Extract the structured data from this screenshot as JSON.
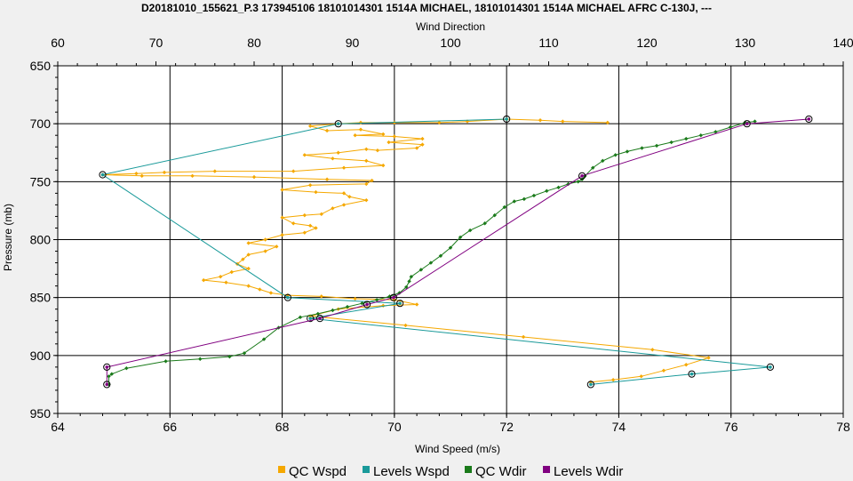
{
  "chart_data": {
    "type": "line",
    "title": "D20181010_155621_P.3 173945106 18101014301 1514A MICHAEL, 18101014301 1514A MICHAEL AFRC C-130J, ---",
    "xlabel_bottom": "Wind Speed (m/s)",
    "xlabel_top": "Wind Direction",
    "ylabel": "Pressure (mb)",
    "x_bottom_range": [
      64,
      78
    ],
    "x_top_range": [
      60,
      140
    ],
    "y_range": [
      650,
      950
    ],
    "y_inverted": true,
    "grid": true,
    "legend_position": "bottom",
    "x_bottom_ticks": [
      "64",
      "66",
      "68",
      "70",
      "72",
      "74",
      "76",
      "78"
    ],
    "x_top_ticks": [
      "60",
      "70",
      "80",
      "90",
      "100",
      "110",
      "120",
      "130",
      "140"
    ],
    "y_ticks": [
      "650",
      "700",
      "750",
      "800",
      "850",
      "900",
      "950"
    ],
    "series": [
      {
        "name": "QC Wspd",
        "axis": "bottom",
        "color": "#f5a800",
        "marker": "diamond",
        "points": [
          [
            73.8,
            699
          ],
          [
            73.0,
            698
          ],
          [
            72.6,
            697
          ],
          [
            72.0,
            696
          ],
          [
            71.3,
            698
          ],
          [
            70.8,
            699
          ],
          [
            70.0,
            699
          ],
          [
            69.4,
            699
          ],
          [
            69.0,
            700
          ],
          [
            68.5,
            702
          ],
          [
            68.8,
            706
          ],
          [
            69.4,
            705
          ],
          [
            69.8,
            709
          ],
          [
            69.3,
            710
          ],
          [
            70.0,
            711
          ],
          [
            70.5,
            713
          ],
          [
            69.9,
            716
          ],
          [
            70.5,
            718
          ],
          [
            70.4,
            721
          ],
          [
            69.7,
            723
          ],
          [
            69.5,
            722
          ],
          [
            69.0,
            725
          ],
          [
            68.4,
            727
          ],
          [
            68.9,
            730
          ],
          [
            69.5,
            732
          ],
          [
            69.8,
            736
          ],
          [
            69.1,
            738
          ],
          [
            68.2,
            741
          ],
          [
            66.8,
            741
          ],
          [
            65.9,
            742
          ],
          [
            65.4,
            743
          ],
          [
            64.8,
            744
          ],
          [
            65.5,
            745
          ],
          [
            66.4,
            745
          ],
          [
            67.5,
            746
          ],
          [
            68.8,
            748
          ],
          [
            69.6,
            749
          ],
          [
            69.5,
            752
          ],
          [
            68.5,
            753
          ],
          [
            68.0,
            757
          ],
          [
            68.6,
            759
          ],
          [
            69.1,
            760
          ],
          [
            69.2,
            763
          ],
          [
            69.5,
            766
          ],
          [
            69.1,
            770
          ],
          [
            68.9,
            773
          ],
          [
            68.7,
            778
          ],
          [
            68.4,
            779
          ],
          [
            68.0,
            781
          ],
          [
            68.2,
            786
          ],
          [
            68.5,
            788
          ],
          [
            68.6,
            790
          ],
          [
            68.4,
            794
          ],
          [
            68.0,
            796
          ],
          [
            67.7,
            800
          ],
          [
            67.4,
            803
          ],
          [
            67.9,
            806
          ],
          [
            67.7,
            810
          ],
          [
            67.4,
            813
          ],
          [
            67.3,
            817
          ],
          [
            67.2,
            821
          ],
          [
            67.4,
            825
          ],
          [
            67.1,
            828
          ],
          [
            66.9,
            832
          ],
          [
            66.6,
            835
          ],
          [
            67.0,
            837
          ],
          [
            67.4,
            840
          ],
          [
            67.6,
            843
          ],
          [
            67.8,
            846
          ],
          [
            68.1,
            848
          ],
          [
            68.7,
            849
          ],
          [
            69.3,
            851
          ],
          [
            70.0,
            852
          ],
          [
            70.4,
            856
          ],
          [
            69.8,
            857
          ],
          [
            69.0,
            860
          ],
          [
            68.5,
            866
          ],
          [
            70.2,
            874
          ],
          [
            72.3,
            884
          ],
          [
            74.6,
            895
          ],
          [
            75.6,
            902
          ],
          [
            75.2,
            908
          ],
          [
            74.8,
            913
          ],
          [
            74.4,
            918
          ],
          [
            73.9,
            921
          ],
          [
            73.5,
            923
          ]
        ]
      },
      {
        "name": "Levels Wspd",
        "axis": "bottom",
        "color": "#1a9a9a",
        "marker": "circle",
        "points": [
          [
            72.0,
            696
          ],
          [
            69.0,
            700
          ],
          [
            64.8,
            744
          ],
          [
            68.1,
            850
          ],
          [
            70.1,
            855
          ],
          [
            68.5,
            868
          ],
          [
            76.7,
            910
          ],
          [
            75.3,
            916
          ],
          [
            73.5,
            925
          ]
        ]
      },
      {
        "name": "QC Wdir",
        "axis": "top",
        "color": "#1a7a1a",
        "marker": "diamond",
        "points": [
          [
            131.0,
            698
          ],
          [
            130.0,
            699
          ],
          [
            128.5,
            703
          ],
          [
            127.0,
            707
          ],
          [
            125.5,
            710
          ],
          [
            124.0,
            713
          ],
          [
            122.5,
            716
          ],
          [
            121.0,
            719
          ],
          [
            119.5,
            721
          ],
          [
            118.0,
            724
          ],
          [
            116.8,
            727
          ],
          [
            115.5,
            732
          ],
          [
            114.5,
            738
          ],
          [
            113.7,
            745
          ],
          [
            113.4,
            748
          ],
          [
            113.0,
            750
          ],
          [
            112.0,
            752
          ],
          [
            111.0,
            755
          ],
          [
            109.8,
            758
          ],
          [
            108.5,
            762
          ],
          [
            107.5,
            765
          ],
          [
            106.5,
            767
          ],
          [
            105.5,
            772
          ],
          [
            104.5,
            779
          ],
          [
            103.5,
            786
          ],
          [
            102.0,
            792
          ],
          [
            101.0,
            798
          ],
          [
            100.0,
            807
          ],
          [
            99.0,
            814
          ],
          [
            98.0,
            820
          ],
          [
            97.0,
            826
          ],
          [
            96.0,
            832
          ],
          [
            95.8,
            836
          ],
          [
            95.5,
            841
          ],
          [
            94.8,
            846
          ],
          [
            93.8,
            849
          ],
          [
            92.5,
            852
          ],
          [
            91.0,
            855
          ],
          [
            89.5,
            858
          ],
          [
            88.0,
            861
          ],
          [
            86.5,
            864
          ],
          [
            84.7,
            867
          ],
          [
            82.5,
            876
          ],
          [
            81.0,
            886
          ],
          [
            79.0,
            898
          ],
          [
            77.5,
            901
          ],
          [
            74.5,
            903
          ],
          [
            71.0,
            905
          ],
          [
            67.0,
            911
          ],
          [
            65.5,
            916
          ],
          [
            65.2,
            918
          ],
          [
            65.2,
            925
          ]
        ]
      },
      {
        "name": "Levels Wdir",
        "axis": "top",
        "color": "#800080",
        "marker": "circle",
        "points": [
          [
            136.5,
            696
          ],
          [
            130.2,
            700
          ],
          [
            113.4,
            745
          ],
          [
            94.2,
            850
          ],
          [
            91.5,
            856
          ],
          [
            86.7,
            868
          ],
          [
            65.0,
            910
          ],
          [
            65.0,
            925
          ]
        ]
      }
    ]
  }
}
